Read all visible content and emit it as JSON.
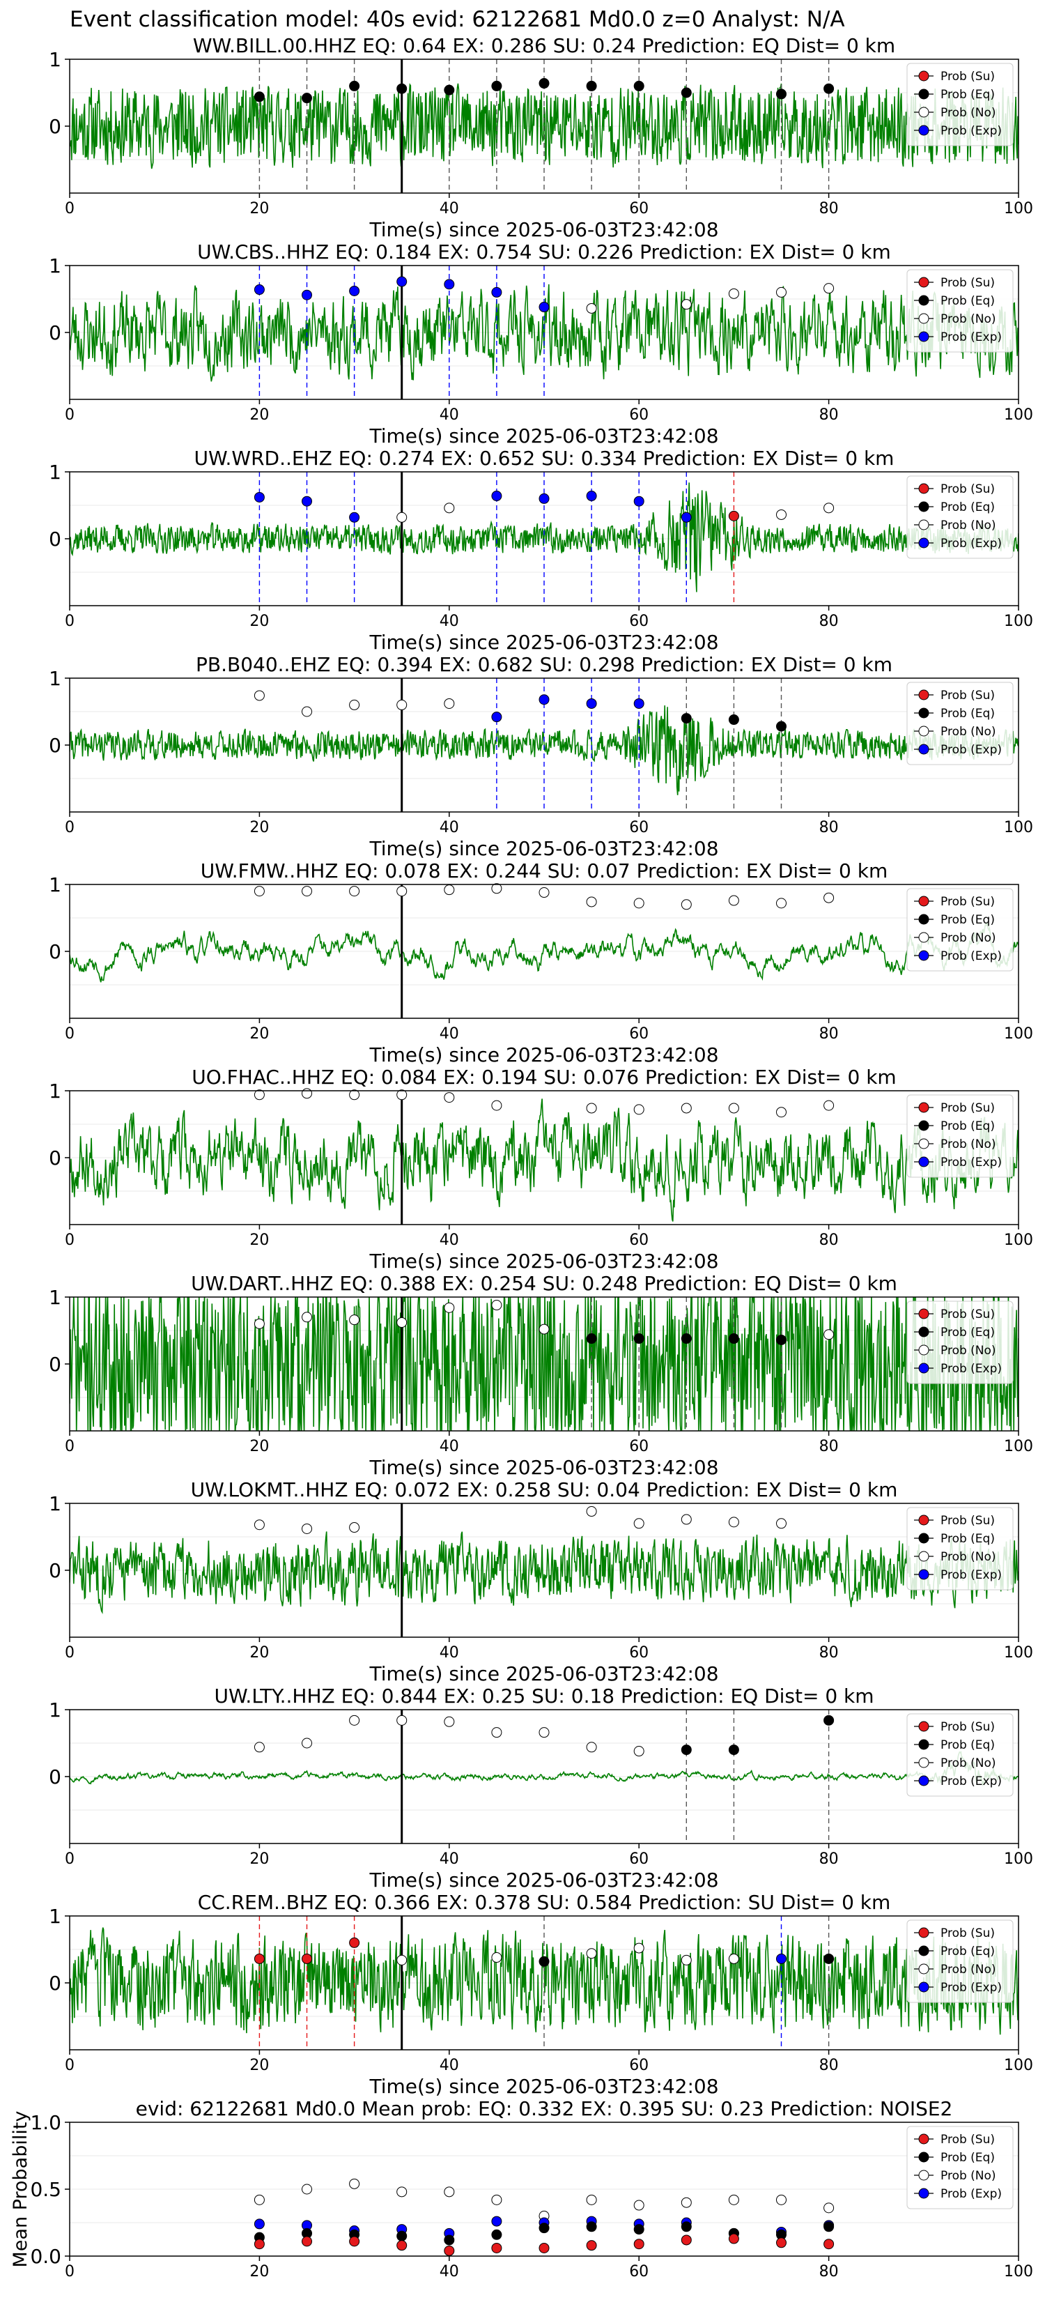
{
  "figure": {
    "suptitle": "Event classification model: 40s evid: 62122681 Md0.0 z=0 Analyst: N/A"
  },
  "colors": {
    "waveform": "#008000",
    "su": "#e41a1c",
    "eq": "#000000",
    "no": "#ffffff",
    "exp": "#0000ff",
    "pick_line": "#000000"
  },
  "legend": {
    "placement": "upper-right",
    "entries": [
      {
        "label": "Prob (Su)",
        "key": "su"
      },
      {
        "label": "Prob (Eq)",
        "key": "eq"
      },
      {
        "label": "Prob (No)",
        "key": "no"
      },
      {
        "label": "Prob (Exp)",
        "key": "exp"
      }
    ]
  },
  "chart_data": [
    {
      "type": "line",
      "title": "WW.BILL.00.HHZ   EQ: 0.64   EX: 0.286   SU: 0.24   Prediction: EQ    Dist= 0 km",
      "xlabel": "Time(s) since 2025-06-03T23:42:08",
      "xlim": [
        0,
        100
      ],
      "ylim": [
        -1,
        1
      ],
      "xticks": [
        "0",
        "20",
        "40",
        "60",
        "80",
        "100"
      ],
      "yticks": [
        "0",
        "1"
      ],
      "pick_time": 35,
      "waveform": {
        "amp": 0.3,
        "seed": 11,
        "smooth": 0.15
      },
      "points": [
        {
          "x": 20,
          "y": 0.44,
          "cls": "eq"
        },
        {
          "x": 25,
          "y": 0.42,
          "cls": "eq"
        },
        {
          "x": 30,
          "y": 0.6,
          "cls": "eq"
        },
        {
          "x": 35,
          "y": 0.56,
          "cls": "eq"
        },
        {
          "x": 40,
          "y": 0.54,
          "cls": "eq"
        },
        {
          "x": 45,
          "y": 0.6,
          "cls": "eq"
        },
        {
          "x": 50,
          "y": 0.64,
          "cls": "eq"
        },
        {
          "x": 55,
          "y": 0.6,
          "cls": "eq"
        },
        {
          "x": 60,
          "y": 0.6,
          "cls": "eq"
        },
        {
          "x": 65,
          "y": 0.5,
          "cls": "eq"
        },
        {
          "x": 75,
          "y": 0.48,
          "cls": "eq"
        },
        {
          "x": 80,
          "y": 0.56,
          "cls": "eq"
        }
      ]
    },
    {
      "type": "line",
      "title": "UW.CBS..HHZ   EQ: 0.184   EX: 0.754   SU: 0.226    Prediction: EX    Dist= 0 km",
      "xlabel": "Time(s) since 2025-06-03T23:42:08",
      "xlim": [
        0,
        100
      ],
      "ylim": [
        -1,
        1
      ],
      "xticks": [
        "0",
        "20",
        "40",
        "60",
        "80",
        "100"
      ],
      "yticks": [
        "0",
        "1"
      ],
      "pick_time": 35,
      "waveform": {
        "amp": 0.45,
        "seed": 23,
        "smooth": 0.55
      },
      "points": [
        {
          "x": 20,
          "y": 0.64,
          "cls": "exp"
        },
        {
          "x": 25,
          "y": 0.56,
          "cls": "exp"
        },
        {
          "x": 30,
          "y": 0.62,
          "cls": "exp"
        },
        {
          "x": 35,
          "y": 0.76,
          "cls": "exp"
        },
        {
          "x": 40,
          "y": 0.72,
          "cls": "exp"
        },
        {
          "x": 45,
          "y": 0.6,
          "cls": "exp"
        },
        {
          "x": 50,
          "y": 0.38,
          "cls": "exp"
        },
        {
          "x": 55,
          "y": 0.36,
          "cls": "no"
        },
        {
          "x": 65,
          "y": 0.42,
          "cls": "no"
        },
        {
          "x": 70,
          "y": 0.58,
          "cls": "no"
        },
        {
          "x": 75,
          "y": 0.6,
          "cls": "no"
        },
        {
          "x": 80,
          "y": 0.66,
          "cls": "no"
        }
      ]
    },
    {
      "type": "line",
      "title": "UW.WRD..EHZ   EQ: 0.274   EX: 0.652   SU: 0.334    Prediction: EX    Dist= 0 km",
      "xlabel": "Time(s) since 2025-06-03T23:42:08",
      "xlim": [
        0,
        100
      ],
      "ylim": [
        -1,
        1
      ],
      "xticks": [
        "0",
        "20",
        "40",
        "60",
        "80",
        "100"
      ],
      "yticks": [
        "0",
        "1"
      ],
      "pick_time": 35,
      "waveform": {
        "amp": 0.12,
        "seed": 37,
        "smooth": 0.25,
        "burst": [
          60,
          72,
          4
        ]
      },
      "points": [
        {
          "x": 20,
          "y": 0.62,
          "cls": "exp"
        },
        {
          "x": 25,
          "y": 0.56,
          "cls": "exp"
        },
        {
          "x": 30,
          "y": 0.32,
          "cls": "exp"
        },
        {
          "x": 35,
          "y": 0.32,
          "cls": "no"
        },
        {
          "x": 40,
          "y": 0.46,
          "cls": "no"
        },
        {
          "x": 45,
          "y": 0.64,
          "cls": "exp"
        },
        {
          "x": 50,
          "y": 0.6,
          "cls": "exp"
        },
        {
          "x": 55,
          "y": 0.64,
          "cls": "exp"
        },
        {
          "x": 60,
          "y": 0.56,
          "cls": "exp"
        },
        {
          "x": 65,
          "y": 0.32,
          "cls": "exp"
        },
        {
          "x": 70,
          "y": 0.34,
          "cls": "su"
        },
        {
          "x": 75,
          "y": 0.36,
          "cls": "no"
        },
        {
          "x": 80,
          "y": 0.46,
          "cls": "no"
        }
      ]
    },
    {
      "type": "line",
      "title": "PB.B040..EHZ   EQ: 0.394   EX: 0.682   SU: 0.298    Prediction: EX    Dist= 0 km",
      "xlabel": "Time(s) since 2025-06-03T23:42:08",
      "xlim": [
        0,
        100
      ],
      "ylim": [
        -1,
        1
      ],
      "xticks": [
        "0",
        "20",
        "40",
        "60",
        "80",
        "100"
      ],
      "yticks": [
        "0",
        "1"
      ],
      "pick_time": 35,
      "waveform": {
        "amp": 0.12,
        "seed": 41,
        "smooth": 0.25,
        "burst": [
          58,
          70,
          3.5
        ]
      },
      "points": [
        {
          "x": 20,
          "y": 0.74,
          "cls": "no"
        },
        {
          "x": 25,
          "y": 0.5,
          "cls": "no"
        },
        {
          "x": 30,
          "y": 0.6,
          "cls": "no"
        },
        {
          "x": 35,
          "y": 0.6,
          "cls": "no"
        },
        {
          "x": 40,
          "y": 0.62,
          "cls": "no"
        },
        {
          "x": 45,
          "y": 0.42,
          "cls": "exp"
        },
        {
          "x": 50,
          "y": 0.68,
          "cls": "exp"
        },
        {
          "x": 55,
          "y": 0.62,
          "cls": "exp"
        },
        {
          "x": 60,
          "y": 0.62,
          "cls": "exp"
        },
        {
          "x": 65,
          "y": 0.4,
          "cls": "eq"
        },
        {
          "x": 70,
          "y": 0.38,
          "cls": "eq"
        },
        {
          "x": 75,
          "y": 0.28,
          "cls": "eq"
        }
      ]
    },
    {
      "type": "line",
      "title": "UW.FMW..HHZ   EQ: 0.078   EX: 0.244   SU: 0.07    Prediction: EX    Dist= 0 km",
      "xlabel": "Time(s) since 2025-06-03T23:42:08",
      "xlim": [
        0,
        100
      ],
      "ylim": [
        -1,
        1
      ],
      "xticks": [
        "0",
        "20",
        "40",
        "60",
        "80",
        "100"
      ],
      "yticks": [
        "0",
        "1"
      ],
      "pick_time": 35,
      "waveform": {
        "amp": 0.55,
        "seed": 53,
        "smooth": 0.92
      },
      "points": [
        {
          "x": 20,
          "y": 0.9,
          "cls": "no"
        },
        {
          "x": 25,
          "y": 0.9,
          "cls": "no"
        },
        {
          "x": 30,
          "y": 0.9,
          "cls": "no"
        },
        {
          "x": 35,
          "y": 0.9,
          "cls": "no"
        },
        {
          "x": 40,
          "y": 0.92,
          "cls": "no"
        },
        {
          "x": 45,
          "y": 0.94,
          "cls": "no"
        },
        {
          "x": 50,
          "y": 0.88,
          "cls": "no"
        },
        {
          "x": 55,
          "y": 0.74,
          "cls": "no"
        },
        {
          "x": 60,
          "y": 0.72,
          "cls": "no"
        },
        {
          "x": 65,
          "y": 0.7,
          "cls": "no"
        },
        {
          "x": 70,
          "y": 0.76,
          "cls": "no"
        },
        {
          "x": 75,
          "y": 0.72,
          "cls": "no"
        },
        {
          "x": 80,
          "y": 0.8,
          "cls": "no"
        }
      ]
    },
    {
      "type": "line",
      "title": "UO.FHAC..HHZ   EQ: 0.084   EX: 0.194   SU: 0.076    Prediction: EX    Dist= 0 km",
      "xlabel": "Time(s) since 2025-06-03T23:42:08",
      "xlim": [
        0,
        100
      ],
      "ylim": [
        -1,
        1
      ],
      "xticks": [
        "0",
        "20",
        "40",
        "60",
        "80",
        "100"
      ],
      "yticks": [
        "0",
        "1"
      ],
      "pick_time": 35,
      "waveform": {
        "amp": 0.55,
        "seed": 67,
        "smooth": 0.7
      },
      "points": [
        {
          "x": 20,
          "y": 0.94,
          "cls": "no"
        },
        {
          "x": 25,
          "y": 0.96,
          "cls": "no"
        },
        {
          "x": 30,
          "y": 0.94,
          "cls": "no"
        },
        {
          "x": 35,
          "y": 0.94,
          "cls": "no"
        },
        {
          "x": 40,
          "y": 0.9,
          "cls": "no"
        },
        {
          "x": 45,
          "y": 0.78,
          "cls": "no"
        },
        {
          "x": 55,
          "y": 0.74,
          "cls": "no"
        },
        {
          "x": 60,
          "y": 0.72,
          "cls": "no"
        },
        {
          "x": 65,
          "y": 0.74,
          "cls": "no"
        },
        {
          "x": 70,
          "y": 0.74,
          "cls": "no"
        },
        {
          "x": 75,
          "y": 0.68,
          "cls": "no"
        },
        {
          "x": 80,
          "y": 0.78,
          "cls": "no"
        }
      ]
    },
    {
      "type": "line",
      "title": "UW.DART..HHZ   EQ: 0.388   EX: 0.254   SU: 0.248    Prediction: EQ    Dist= 0 km",
      "xlabel": "Time(s) since 2025-06-03T23:42:08",
      "xlim": [
        0,
        100
      ],
      "ylim": [
        -1,
        1
      ],
      "xticks": [
        "0",
        "20",
        "40",
        "60",
        "80",
        "100"
      ],
      "yticks": [
        "0",
        "1"
      ],
      "pick_time": 35,
      "waveform": {
        "amp": 0.6,
        "seed": 71,
        "smooth": 0.05
      },
      "points": [
        {
          "x": 20,
          "y": 0.6,
          "cls": "no"
        },
        {
          "x": 25,
          "y": 0.7,
          "cls": "no"
        },
        {
          "x": 30,
          "y": 0.66,
          "cls": "no"
        },
        {
          "x": 35,
          "y": 0.62,
          "cls": "no"
        },
        {
          "x": 40,
          "y": 0.84,
          "cls": "no"
        },
        {
          "x": 45,
          "y": 0.88,
          "cls": "no"
        },
        {
          "x": 50,
          "y": 0.52,
          "cls": "no"
        },
        {
          "x": 55,
          "y": 0.38,
          "cls": "eq"
        },
        {
          "x": 60,
          "y": 0.38,
          "cls": "eq"
        },
        {
          "x": 65,
          "y": 0.38,
          "cls": "eq"
        },
        {
          "x": 70,
          "y": 0.38,
          "cls": "eq"
        },
        {
          "x": 75,
          "y": 0.36,
          "cls": "eq"
        },
        {
          "x": 80,
          "y": 0.44,
          "cls": "no"
        }
      ]
    },
    {
      "type": "line",
      "title": "UW.LOKMT..HHZ   EQ: 0.072   EX: 0.258   SU: 0.04    Prediction: EX    Dist= 0 km",
      "xlabel": "Time(s) since 2025-06-03T23:42:08",
      "xlim": [
        0,
        100
      ],
      "ylim": [
        -1,
        1
      ],
      "xticks": [
        "0",
        "20",
        "40",
        "60",
        "80",
        "100"
      ],
      "yticks": [
        "0",
        "1"
      ],
      "pick_time": 35,
      "waveform": {
        "amp": 0.3,
        "seed": 83,
        "smooth": 0.4
      },
      "points": [
        {
          "x": 20,
          "y": 0.68,
          "cls": "no"
        },
        {
          "x": 25,
          "y": 0.62,
          "cls": "no"
        },
        {
          "x": 30,
          "y": 0.64,
          "cls": "no"
        },
        {
          "x": 55,
          "y": 0.88,
          "cls": "no"
        },
        {
          "x": 60,
          "y": 0.7,
          "cls": "no"
        },
        {
          "x": 65,
          "y": 0.76,
          "cls": "no"
        },
        {
          "x": 70,
          "y": 0.72,
          "cls": "no"
        },
        {
          "x": 75,
          "y": 0.7,
          "cls": "no"
        }
      ]
    },
    {
      "type": "line",
      "title": "UW.LTY..HHZ   EQ: 0.844   EX: 0.25   SU: 0.18    Prediction: EQ    Dist= 0 km",
      "xlabel": "Time(s) since 2025-06-03T23:42:08",
      "xlim": [
        0,
        100
      ],
      "ylim": [
        -1,
        1
      ],
      "xticks": [
        "0",
        "20",
        "40",
        "60",
        "80",
        "100"
      ],
      "yticks": [
        "0",
        "1"
      ],
      "pick_time": 35,
      "waveform": {
        "amp": 0.08,
        "seed": 97,
        "smooth": 0.85,
        "burst": [
          90,
          100,
          5
        ]
      },
      "points": [
        {
          "x": 20,
          "y": 0.44,
          "cls": "no"
        },
        {
          "x": 25,
          "y": 0.5,
          "cls": "no"
        },
        {
          "x": 30,
          "y": 0.84,
          "cls": "no"
        },
        {
          "x": 35,
          "y": 0.84,
          "cls": "no"
        },
        {
          "x": 40,
          "y": 0.82,
          "cls": "no"
        },
        {
          "x": 45,
          "y": 0.66,
          "cls": "no"
        },
        {
          "x": 50,
          "y": 0.66,
          "cls": "no"
        },
        {
          "x": 55,
          "y": 0.44,
          "cls": "no"
        },
        {
          "x": 60,
          "y": 0.38,
          "cls": "no"
        },
        {
          "x": 65,
          "y": 0.4,
          "cls": "eq"
        },
        {
          "x": 70,
          "y": 0.4,
          "cls": "eq"
        },
        {
          "x": 80,
          "y": 0.84,
          "cls": "eq"
        }
      ]
    },
    {
      "type": "line",
      "title": "CC.REM..BHZ   EQ: 0.366   EX: 0.378   SU: 0.584    Prediction: SU    Dist= 0 km",
      "xlabel": "Time(s) since 2025-06-03T23:42:08",
      "xlim": [
        0,
        100
      ],
      "ylim": [
        -1,
        1
      ],
      "xticks": [
        "0",
        "20",
        "40",
        "60",
        "80",
        "100"
      ],
      "yticks": [
        "0",
        "1"
      ],
      "pick_time": 35,
      "waveform": {
        "amp": 0.4,
        "seed": 103,
        "smooth": 0.3
      },
      "points": [
        {
          "x": 20,
          "y": 0.36,
          "cls": "su"
        },
        {
          "x": 25,
          "y": 0.36,
          "cls": "su"
        },
        {
          "x": 30,
          "y": 0.6,
          "cls": "su"
        },
        {
          "x": 35,
          "y": 0.34,
          "cls": "no"
        },
        {
          "x": 45,
          "y": 0.38,
          "cls": "no"
        },
        {
          "x": 50,
          "y": 0.32,
          "cls": "eq"
        },
        {
          "x": 55,
          "y": 0.44,
          "cls": "no"
        },
        {
          "x": 60,
          "y": 0.52,
          "cls": "no"
        },
        {
          "x": 65,
          "y": 0.34,
          "cls": "no"
        },
        {
          "x": 70,
          "y": 0.36,
          "cls": "no"
        },
        {
          "x": 75,
          "y": 0.36,
          "cls": "exp"
        },
        {
          "x": 80,
          "y": 0.36,
          "cls": "eq"
        }
      ]
    },
    {
      "type": "scatter",
      "title": "evid: 62122681  Md0.0   Mean prob:   EQ: 0.332  EX: 0.395  SU: 0.23   Prediction: NOISE2",
      "ylabel": "Mean Probability",
      "xlim": [
        0,
        100
      ],
      "ylim": [
        0,
        1
      ],
      "xticks": [
        "0",
        "20",
        "40",
        "60",
        "80",
        "100"
      ],
      "yticks": [
        "0.0",
        "0.5",
        "1.0"
      ],
      "x": [
        20,
        25,
        30,
        35,
        40,
        45,
        50,
        55,
        60,
        65,
        70,
        75,
        80
      ],
      "series": [
        {
          "key": "no",
          "values": [
            0.42,
            0.5,
            0.54,
            0.48,
            0.48,
            0.42,
            0.3,
            0.42,
            0.38,
            0.4,
            0.42,
            0.42,
            0.36
          ]
        },
        {
          "key": "exp",
          "values": [
            0.24,
            0.23,
            0.19,
            0.2,
            0.17,
            0.26,
            0.25,
            0.26,
            0.24,
            0.25,
            0.17,
            0.18,
            0.23
          ]
        },
        {
          "key": "eq",
          "values": [
            0.14,
            0.17,
            0.16,
            0.15,
            0.12,
            0.16,
            0.21,
            0.22,
            0.2,
            0.22,
            0.17,
            0.16,
            0.22
          ]
        },
        {
          "key": "su",
          "values": [
            0.09,
            0.11,
            0.11,
            0.08,
            0.04,
            0.06,
            0.06,
            0.08,
            0.09,
            0.12,
            0.13,
            0.1,
            0.09
          ]
        }
      ]
    }
  ]
}
